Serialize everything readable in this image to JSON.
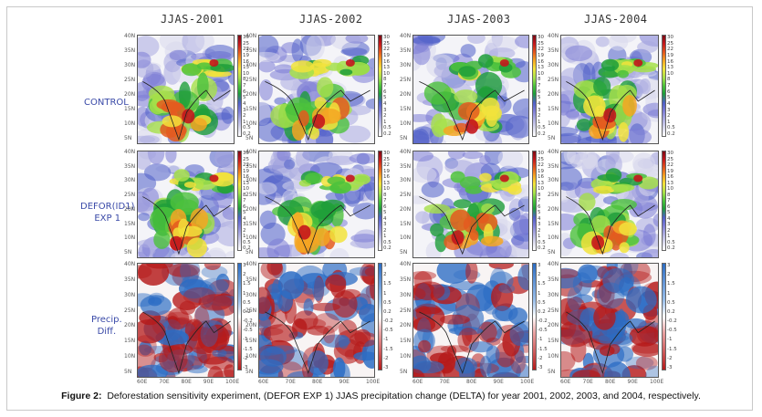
{
  "figure": {
    "columns": [
      "JJAS-2001",
      "JJAS-2002",
      "JJAS-2003",
      "JJAS-2004"
    ],
    "rows": [
      {
        "label_lines": [
          "CONTROL"
        ]
      },
      {
        "label_lines": [
          "DEFOR(ID1)",
          "EXP 1"
        ]
      },
      {
        "label_lines": [
          "Precip.",
          "Diff."
        ]
      }
    ],
    "lat_labels": [
      "40N",
      "35N",
      "30N",
      "25N",
      "20N",
      "15N",
      "10N",
      "5N"
    ],
    "lon_labels": [
      "60E",
      "70E",
      "80E",
      "90E",
      "100E"
    ],
    "precip_scale": [
      "30",
      "25",
      "22",
      "19",
      "16",
      "13",
      "10",
      "8",
      "7",
      "6",
      "5",
      "4",
      "3",
      "2",
      "1",
      "0.5",
      "0.2"
    ],
    "diff_scale": [
      "3",
      "2",
      "1.5",
      "1",
      "0.5",
      "0.2",
      "-0.2",
      "-0.5",
      "-1",
      "-1.5",
      "-2",
      "-3"
    ],
    "colors": {
      "precip_ramp": [
        "#ffffff",
        "#d8d8ec",
        "#a9a9e0",
        "#7c7cd6",
        "#4f5fc8",
        "#1e9e3a",
        "#4cc23c",
        "#a6e04a",
        "#f2e33c",
        "#f5a623",
        "#e45a1e",
        "#c4161c",
        "#7a0a14"
      ],
      "diff_pos": "#2b6cc4",
      "diff_neg": "#b51a1a",
      "row_label": "#3a4aa8"
    }
  },
  "caption": {
    "label": "Figure 2:",
    "text": "Deforestation sensitivity experiment, (DEFOR EXP 1) JJAS precipitation change (DELTA) for year 2001, 2002, 2003, and 2004, respectively."
  }
}
